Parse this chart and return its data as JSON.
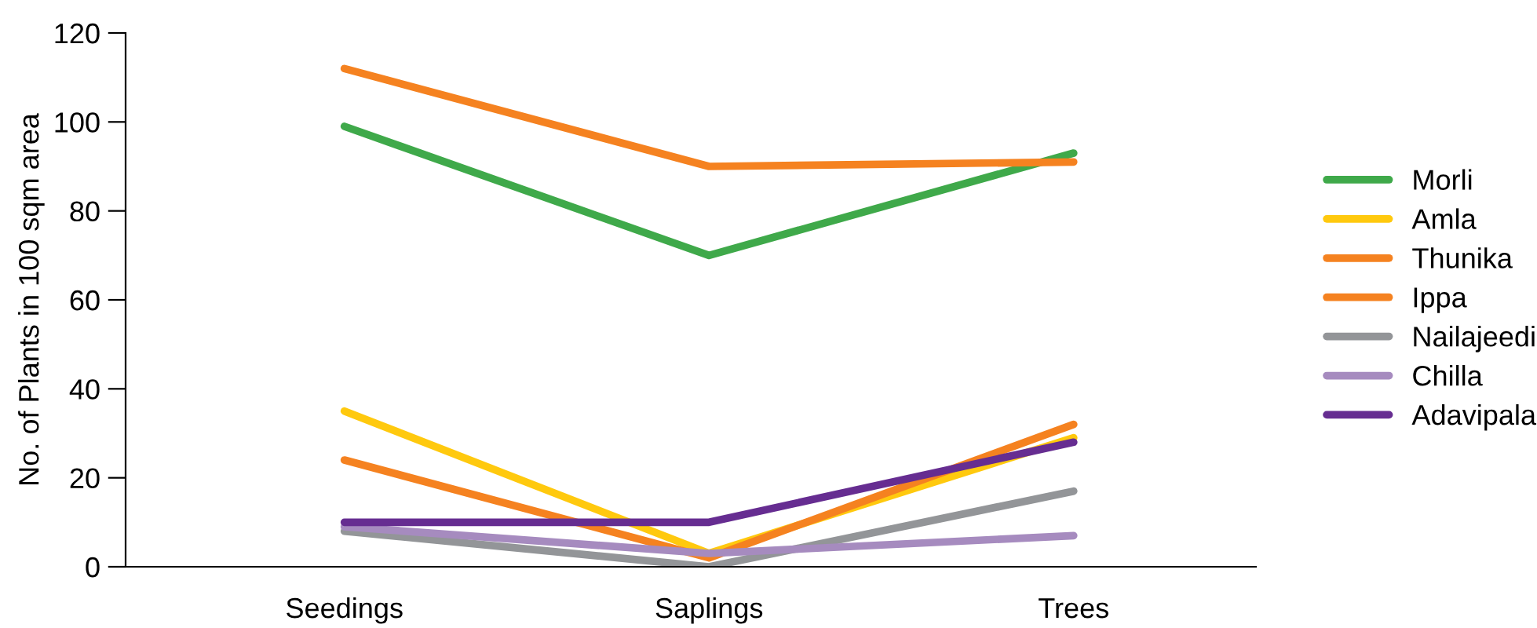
{
  "chart_data": {
    "type": "line",
    "ylabel": "No. of Plants in 100 sqm area",
    "categories": [
      "Seedings",
      "Saplings",
      "Trees"
    ],
    "series": [
      {
        "name": "Morli",
        "color": "#3fa94a",
        "values": [
          99,
          70,
          93
        ]
      },
      {
        "name": "Amla",
        "color": "#ffc90e",
        "values": [
          35,
          3,
          29
        ]
      },
      {
        "name": "Thunika",
        "color": "#f58220",
        "values": [
          112,
          90,
          91
        ]
      },
      {
        "name": "Ippa",
        "color": "#f58220",
        "values": [
          24,
          2,
          32
        ]
      },
      {
        "name": "Nailajeedi",
        "color": "#939598",
        "values": [
          8,
          0,
          17
        ]
      },
      {
        "name": "Chilla",
        "color": "#a68bbf",
        "values": [
          9,
          3,
          7
        ]
      },
      {
        "name": "Adavipala",
        "color": "#662d91",
        "values": [
          10,
          10,
          28
        ]
      }
    ],
    "ylim": [
      0,
      120
    ],
    "yticks": [
      0,
      20,
      40,
      60,
      80,
      100,
      120
    ],
    "grid": false,
    "legend": "right",
    "marker": "none",
    "line_style": "solid"
  }
}
